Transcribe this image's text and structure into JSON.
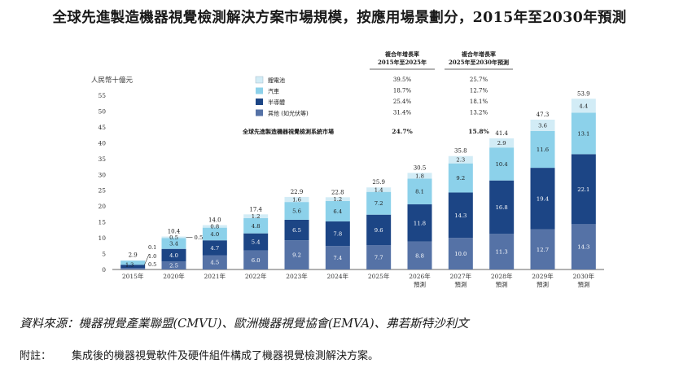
{
  "title": "全球先進製造機器視覺檢測解決方案市場規模，按應用場景劃分，2015年至2030年預測",
  "chart_data": {
    "type": "bar",
    "stacked": true,
    "ylabel": "人民幣十億元",
    "ylim": [
      0,
      55
    ],
    "yticks": [
      0,
      5,
      10,
      15,
      20,
      25,
      30,
      35,
      40,
      45,
      50,
      55
    ],
    "categories": [
      [
        "2015年"
      ],
      [
        "2020年"
      ],
      [
        "2021年"
      ],
      [
        "2022年"
      ],
      [
        "2023年"
      ],
      [
        "2024年"
      ],
      [
        "2025年"
      ],
      [
        "2026年",
        "預測"
      ],
      [
        "2027年",
        "預測"
      ],
      [
        "2028年",
        "預測"
      ],
      [
        "2029年",
        "預測"
      ],
      [
        "2030年",
        "預測"
      ]
    ],
    "series": [
      {
        "name": "其他 (如光伏等)",
        "color": "#5572a6",
        "values": [
          0.5,
          2.5,
          4.5,
          6.0,
          9.2,
          7.4,
          7.7,
          8.8,
          10.0,
          11.3,
          12.7,
          14.3
        ]
      },
      {
        "name": "半導體",
        "color": "#1c4585",
        "values": [
          1.0,
          4.0,
          4.7,
          5.4,
          6.5,
          7.8,
          9.6,
          11.8,
          14.3,
          16.8,
          19.4,
          22.1
        ]
      },
      {
        "name": "汽車",
        "color": "#8cd1ea",
        "values": [
          1.3,
          3.4,
          4.0,
          4.8,
          5.6,
          6.4,
          7.2,
          8.1,
          9.2,
          10.4,
          11.6,
          13.1
        ]
      },
      {
        "name": "鋰電池",
        "color": "#d2ecf6",
        "values": [
          0.1,
          0.5,
          0.8,
          1.2,
          1.6,
          1.2,
          1.4,
          1.8,
          2.3,
          2.9,
          3.6,
          4.4
        ]
      }
    ],
    "totals": [
      2.9,
      10.4,
      14.0,
      17.4,
      22.9,
      22.8,
      25.9,
      30.5,
      35.8,
      41.4,
      47.3,
      53.9
    ],
    "legend_position": "top-left",
    "cagr_table": {
      "headers": [
        [
          "複合年增長率",
          "2015年至2025年"
        ],
        [
          "複合年增長率",
          "2025年至2030年預測"
        ]
      ],
      "rows": [
        {
          "label": "",
          "c1": "39.5%",
          "c2": "25.7%"
        },
        {
          "label": "",
          "c1": "18.7%",
          "c2": "12.7%"
        },
        {
          "label": "",
          "c1": "25.4%",
          "c2": "18.1%"
        },
        {
          "label": "",
          "c1": "31.4%",
          "c2": "13.2%"
        }
      ],
      "total_label": "全球先進製造機器視覺檢測系統市場",
      "total_c1": "24.7%",
      "total_c2": "15.8%"
    }
  },
  "source": "資料來源：機器視覺產業聯盟(CMVU)、歐洲機器視覺協會(EMVA)、弗若斯特沙利文",
  "note_label": "附註：",
  "note_text": "集成後的機器視覺軟件及硬件組件構成了機器視覺檢測解決方案。"
}
